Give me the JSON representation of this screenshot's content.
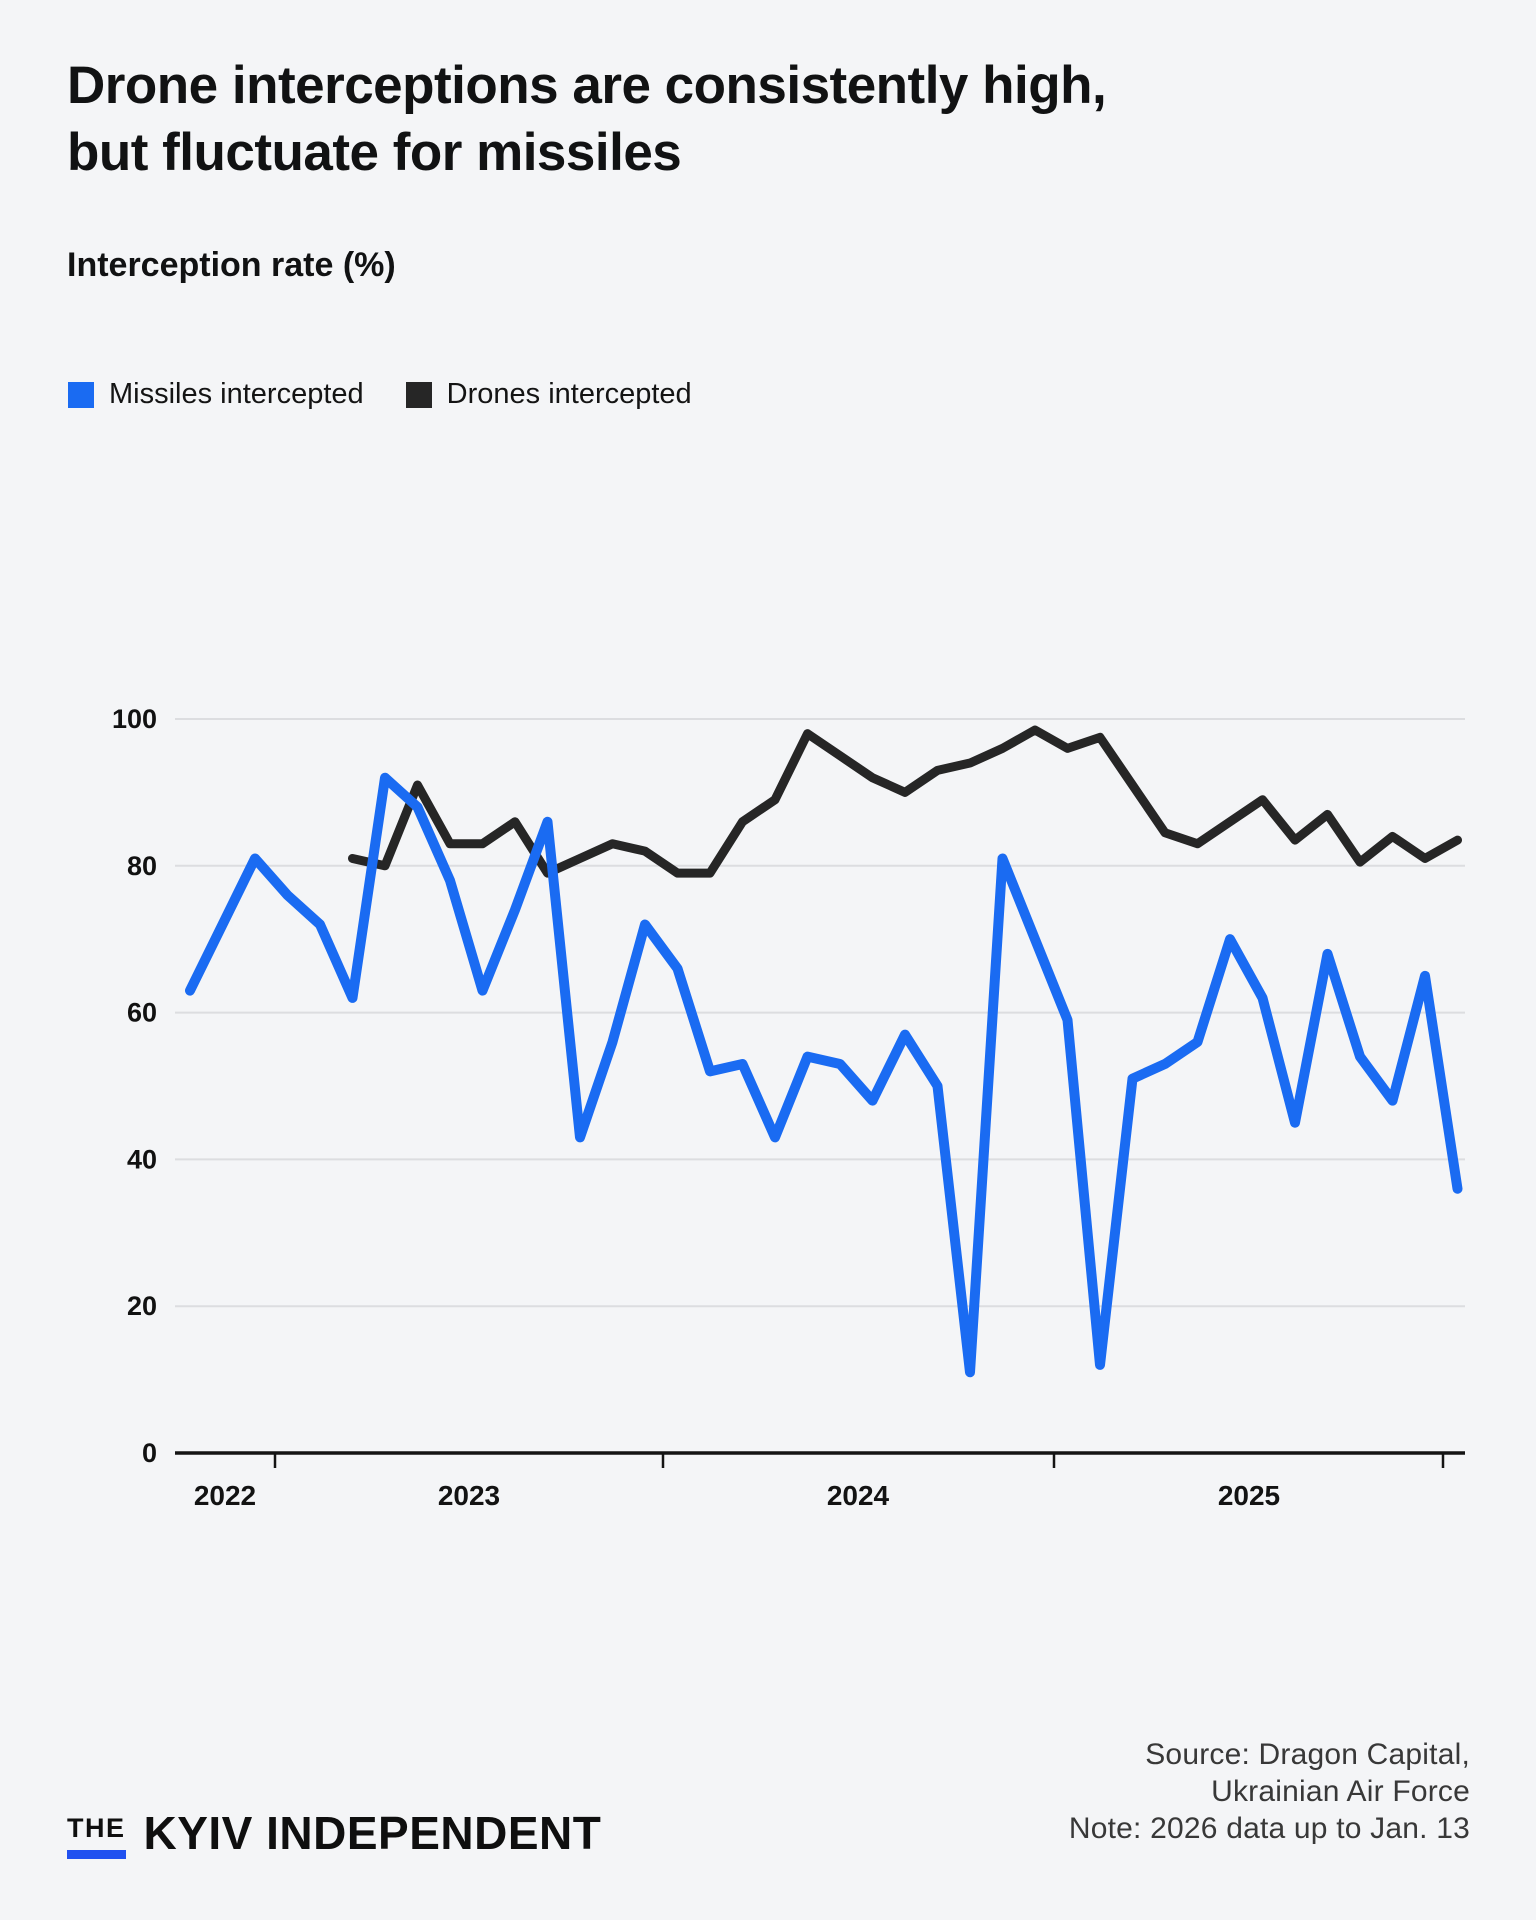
{
  "header": {
    "title_line1": "Drone interceptions are consistently high,",
    "title_line2": "but fluctuate for missiles",
    "subtitle": "Interception rate (%)"
  },
  "legend": [
    {
      "label": "Missiles intercepted",
      "color": "#1a6bf2"
    },
    {
      "label": "Drones intercepted",
      "color": "#262626"
    }
  ],
  "chart_data": {
    "type": "line",
    "title": "Interception rate (%)",
    "x_unit": "month",
    "start": "Oct 2022",
    "end": "Jan 2026",
    "grid": true,
    "legend_position": "top",
    "y_axis": {
      "ticks": [
        100,
        80,
        60,
        40,
        20,
        0
      ],
      "range": [
        0,
        100
      ]
    },
    "x_axis": {
      "year_labels": [
        "2022",
        "2023",
        "2024",
        "2025"
      ]
    },
    "series": [
      {
        "name": "Missiles intercepted",
        "color": "#1a6bf2",
        "values": [
          63,
          72,
          81,
          76,
          72,
          62,
          92,
          88,
          78,
          63,
          74,
          86,
          43,
          56,
          72,
          66,
          52,
          53,
          43,
          54,
          53,
          48,
          57,
          50,
          11,
          81,
          70,
          59,
          12,
          51,
          53,
          56,
          70,
          62,
          45,
          68,
          54,
          48,
          65,
          36
        ]
      },
      {
        "name": "Drones intercepted",
        "color": "#262626",
        "values": [
          null,
          null,
          null,
          null,
          null,
          81,
          80,
          91,
          83,
          83,
          86,
          79,
          81,
          83,
          82,
          79,
          79,
          86,
          89,
          98,
          95,
          92,
          90,
          93,
          94,
          96,
          98.5,
          96,
          97.5,
          91,
          84.5,
          83,
          86,
          89,
          83.5,
          87,
          80.5,
          84,
          81,
          83.5
        ]
      }
    ]
  },
  "footer": {
    "source_line1": "Source: Dragon Capital,",
    "source_line2": "Ukrainian Air Force",
    "note": "Note: 2026 data up to Jan. 13",
    "logo_the": "THE",
    "logo_name": "KYIV INDEPENDENT",
    "logo_bar_color": "#2151f0"
  }
}
